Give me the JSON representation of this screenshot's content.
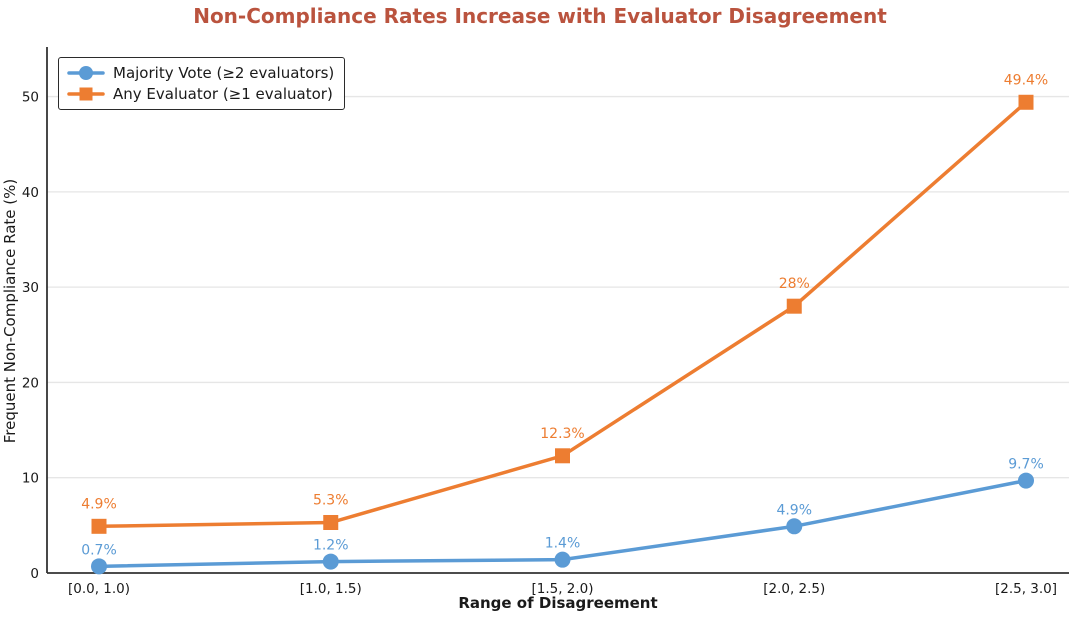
{
  "title": "Non-Compliance Rates Increase with Evaluator Disagreement",
  "chart_data": {
    "type": "line",
    "title": "Non-Compliance Rates Increase with Evaluator Disagreement",
    "xlabel": "Range of Disagreement",
    "ylabel": "Frequent Non-Compliance Rate (%)",
    "categories": [
      "[0.0, 1.0)",
      "[1.0, 1.5)",
      "[1.5, 2.0)",
      "[2.0, 2.5)",
      "[2.5, 3.0]"
    ],
    "series": [
      {
        "name": "Majority Vote (≥2 evaluators)",
        "values": [
          0.7,
          1.2,
          1.4,
          4.9,
          9.7
        ],
        "point_labels": [
          "0.7%",
          "1.2%",
          "1.4%",
          "4.9%",
          "9.7%"
        ],
        "color": "#5B9BD5",
        "marker": "circle",
        "label_offset": 12
      },
      {
        "name": "Any Evaluator (≥1 evaluator)",
        "values": [
          4.9,
          5.3,
          12.3,
          28,
          49.4
        ],
        "point_labels": [
          "4.9%",
          "5.3%",
          "12.3%",
          "28%",
          "49.4%"
        ],
        "color": "#ED7D31",
        "marker": "square",
        "label_offset": 18
      }
    ],
    "yticks": [
      0,
      10,
      20,
      30,
      40,
      50
    ],
    "ylim": [
      0,
      55.2
    ],
    "grid": "horizontal",
    "legend_position": "upper-left"
  },
  "colors": {
    "title": "#BA533E",
    "grid": "#E6E6E6",
    "axis": "#333333",
    "tick_text": "#1a1a1a"
  }
}
